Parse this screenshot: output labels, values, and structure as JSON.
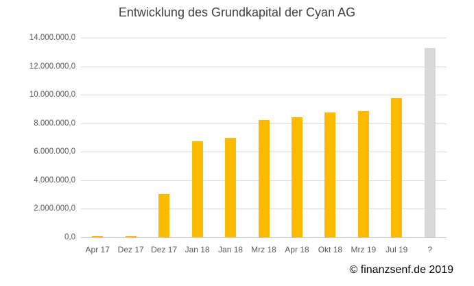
{
  "title": "Entwicklung des Grundkapital der Cyan AG",
  "footer": {
    "copyright": "© finanzsenf.de 2019"
  },
  "colors": {
    "bar": "#FFB900",
    "projection_bar": "#D9D9D9",
    "gridline": "#D9D9D9",
    "axis_line": "#C9C9C9",
    "tick_text": "#595959",
    "title_text": "#404040",
    "copyright_text": "#000000"
  },
  "chart_data": {
    "type": "bar",
    "title": "Entwicklung des Grundkapital der Cyan AG",
    "categories": [
      "Apr 17",
      "Dez 17",
      "Dez 17",
      "Jan 18",
      "Jan 18",
      "Mrz 18",
      "Apr 18",
      "Okt 18",
      "Mrz 19",
      "Jul 19",
      "?"
    ],
    "values": [
      100000,
      100000,
      3050000,
      6750000,
      7000000,
      8250000,
      8400000,
      8750000,
      8850000,
      9750000,
      13300000
    ],
    "bar_colors": [
      "#FFB900",
      "#FFB900",
      "#FFB900",
      "#FFB900",
      "#FFB900",
      "#FFB900",
      "#FFB900",
      "#FFB900",
      "#FFB900",
      "#FFB900",
      "#D9D9D9"
    ],
    "bar_roles": [
      "actual",
      "actual",
      "actual",
      "actual",
      "actual",
      "actual",
      "actual",
      "actual",
      "actual",
      "actual",
      "projected"
    ],
    "xlabel": "",
    "ylabel": "",
    "ylim": [
      0,
      14000000
    ],
    "ytick_values": [
      0,
      2000000,
      4000000,
      6000000,
      8000000,
      10000000,
      12000000,
      14000000
    ],
    "ytick_labels": [
      "0,0",
      "2.000.000,0",
      "4.000.000,0",
      "6.000.000,0",
      "8.000.000,0",
      "10.000.000,0",
      "12.000.000,0",
      "14.000.000,0"
    ],
    "grid": true,
    "legend": false
  }
}
